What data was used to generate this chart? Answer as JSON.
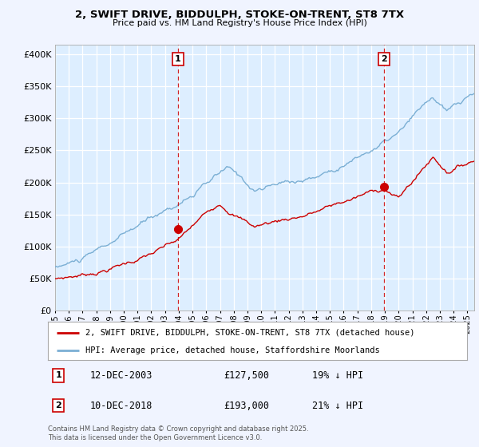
{
  "title_line1": "2, SWIFT DRIVE, BIDDULPH, STOKE-ON-TRENT, ST8 7TX",
  "title_line2": "Price paid vs. HM Land Registry's House Price Index (HPI)",
  "ytick_values": [
    0,
    50000,
    100000,
    150000,
    200000,
    250000,
    300000,
    350000,
    400000
  ],
  "ylim": [
    0,
    415000
  ],
  "xlim_start": 1995.0,
  "xlim_end": 2025.5,
  "hpi_color": "#7bafd4",
  "hpi_fill_color": "#ddeeff",
  "price_color": "#cc0000",
  "vline_color": "#cc0000",
  "sale1_x": 2003.92,
  "sale1_y": 127500,
  "sale2_x": 2018.92,
  "sale2_y": 193000,
  "legend_price_label": "2, SWIFT DRIVE, BIDDULPH, STOKE-ON-TRENT, ST8 7TX (detached house)",
  "legend_hpi_label": "HPI: Average price, detached house, Staffordshire Moorlands",
  "annotation1_num": "1",
  "annotation1_date": "12-DEC-2003",
  "annotation1_price": "£127,500",
  "annotation1_pct": "19% ↓ HPI",
  "annotation2_num": "2",
  "annotation2_date": "10-DEC-2018",
  "annotation2_price": "£193,000",
  "annotation2_pct": "21% ↓ HPI",
  "footer": "Contains HM Land Registry data © Crown copyright and database right 2025.\nThis data is licensed under the Open Government Licence v3.0.",
  "background_color": "#f0f4ff",
  "plot_bg_color": "#ddeeff",
  "grid_color": "#aaaacc"
}
